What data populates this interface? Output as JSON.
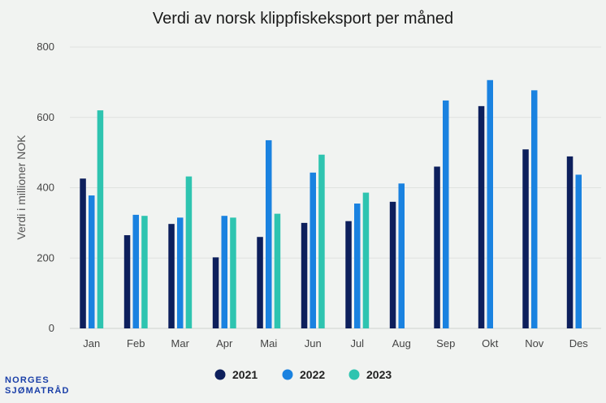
{
  "chart_data": {
    "type": "bar",
    "title": "Verdi av norsk klippfiskeksport per måned",
    "ylabel": "Verdi i millioner NOK",
    "xlabel": "",
    "ylim": [
      0,
      800
    ],
    "yticks": [
      0,
      200,
      400,
      600,
      800
    ],
    "grid": true,
    "legend_position": "bottom",
    "categories": [
      "Jan",
      "Feb",
      "Mar",
      "Apr",
      "Mai",
      "Jun",
      "Jul",
      "Aug",
      "Sep",
      "Okt",
      "Nov",
      "Des"
    ],
    "series": [
      {
        "name": "2021",
        "color": "#0d1f5c",
        "values": [
          426,
          265,
          297,
          202,
          260,
          300,
          305,
          360,
          460,
          632,
          509,
          489
        ]
      },
      {
        "name": "2022",
        "color": "#1a82e0",
        "values": [
          378,
          323,
          315,
          320,
          535,
          443,
          355,
          412,
          648,
          706,
          677,
          437
        ]
      },
      {
        "name": "2023",
        "color": "#2ec4b0",
        "values": [
          620,
          320,
          432,
          315,
          326,
          494,
          386,
          null,
          null,
          null,
          null,
          null
        ]
      }
    ]
  },
  "logo": {
    "line1": "NORGES",
    "line2": "SJØMATRÅD"
  }
}
